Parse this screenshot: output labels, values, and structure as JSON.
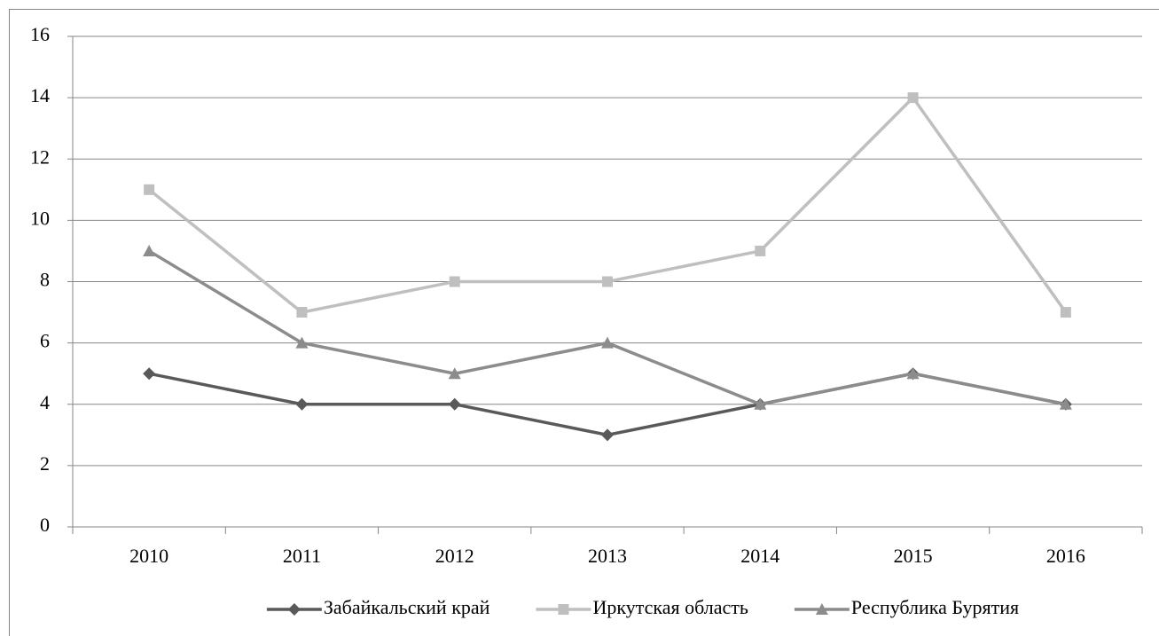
{
  "chart_data": {
    "type": "line",
    "categories": [
      "2010",
      "2011",
      "2012",
      "2013",
      "2014",
      "2015",
      "2016"
    ],
    "series": [
      {
        "name": "Забайкальский край",
        "color": "#595959",
        "marker": "diamond",
        "values": [
          5,
          4,
          4,
          3,
          4,
          5,
          4
        ]
      },
      {
        "name": "Иркутская область",
        "color": "#bfbfbf",
        "marker": "square",
        "values": [
          11,
          7,
          8,
          8,
          9,
          14,
          7
        ]
      },
      {
        "name": "Республика Бурятия",
        "color": "#8c8c8c",
        "marker": "triangle",
        "values": [
          9,
          6,
          5,
          6,
          4,
          5,
          4
        ]
      }
    ],
    "ylim": [
      0,
      16
    ],
    "yticks": [
      0,
      2,
      4,
      6,
      8,
      10,
      12,
      14,
      16
    ],
    "grid": true,
    "legend": "bottom"
  }
}
